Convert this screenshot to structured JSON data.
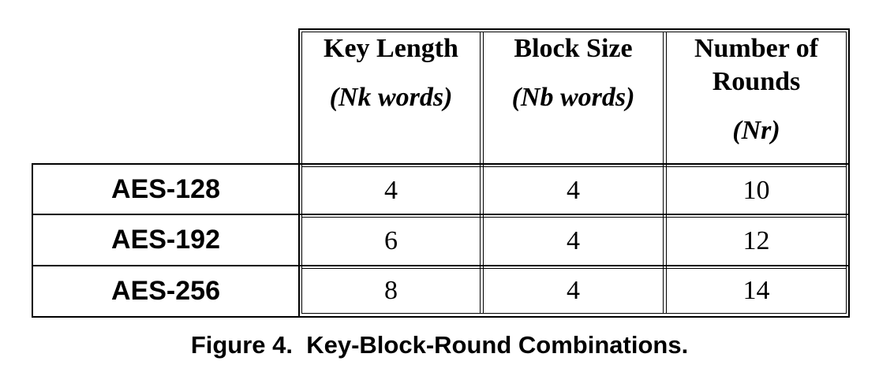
{
  "table": {
    "columns": [
      {
        "title_lines": [
          "Key Length"
        ],
        "subtitle": "(Nk words)"
      },
      {
        "title_lines": [
          "Block Size"
        ],
        "subtitle": "(Nb words)"
      },
      {
        "title_lines": [
          "Number of",
          "Rounds"
        ],
        "subtitle": "(Nr)"
      }
    ],
    "rows": [
      {
        "label": "AES-128",
        "values": [
          "4",
          "4",
          "10"
        ]
      },
      {
        "label": "AES-192",
        "values": [
          "6",
          "4",
          "12"
        ]
      },
      {
        "label": "AES-256",
        "values": [
          "8",
          "4",
          "14"
        ]
      }
    ]
  },
  "caption": "Figure 4.  Key-Block-Round Combinations."
}
